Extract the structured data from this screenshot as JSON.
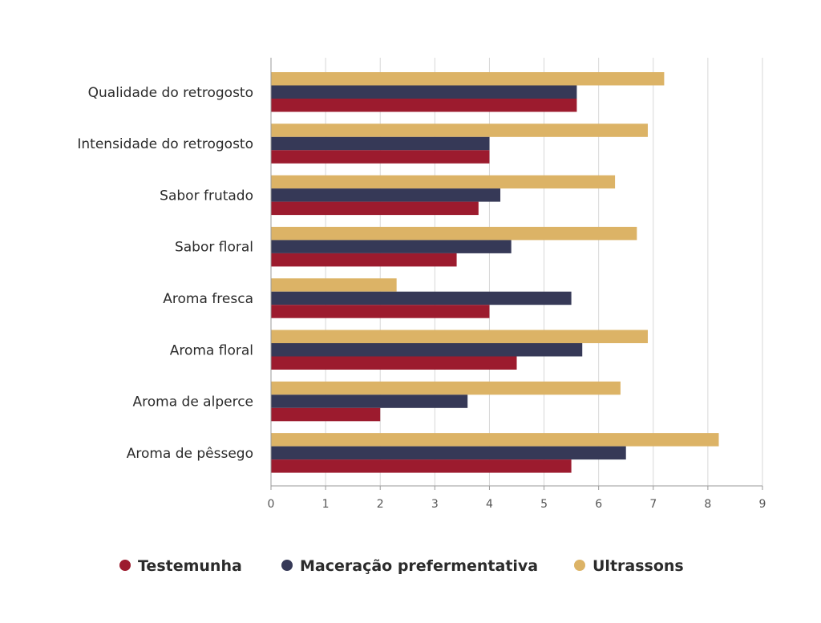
{
  "chart_data": {
    "type": "bar",
    "orientation": "horizontal",
    "categories": [
      "Qualidade do retrogosto",
      "Intensidade do retrogosto",
      "Sabor frutado",
      "Sabor floral",
      "Aroma fresca",
      "Aroma floral",
      "Aroma de alperce",
      "Aroma de pêssego"
    ],
    "series": [
      {
        "name": "Ultrassons",
        "color": "#dcb366",
        "values": [
          7.2,
          6.9,
          6.3,
          6.7,
          2.3,
          6.9,
          6.4,
          8.2
        ]
      },
      {
        "name": "Maceração prefermentativa",
        "color": "#363957",
        "values": [
          5.6,
          4.0,
          4.2,
          4.4,
          5.5,
          5.7,
          3.6,
          6.5
        ]
      },
      {
        "name": "Testemunha",
        "color": "#9c1b2e",
        "values": [
          5.6,
          4.0,
          3.8,
          3.4,
          4.0,
          4.5,
          2.0,
          5.5
        ]
      }
    ],
    "xlim": [
      0,
      9
    ],
    "xticks": [
      "0",
      "1",
      "2",
      "3",
      "4",
      "5",
      "6",
      "7",
      "8",
      "9"
    ],
    "grid": true,
    "legend": {
      "position": "bottom",
      "entries": [
        {
          "name": "Testemunha",
          "color": "#9c1b2e"
        },
        {
          "name": "Maceração prefermentativa",
          "color": "#363957"
        },
        {
          "name": "Ultrassons",
          "color": "#dcb366"
        }
      ]
    }
  }
}
